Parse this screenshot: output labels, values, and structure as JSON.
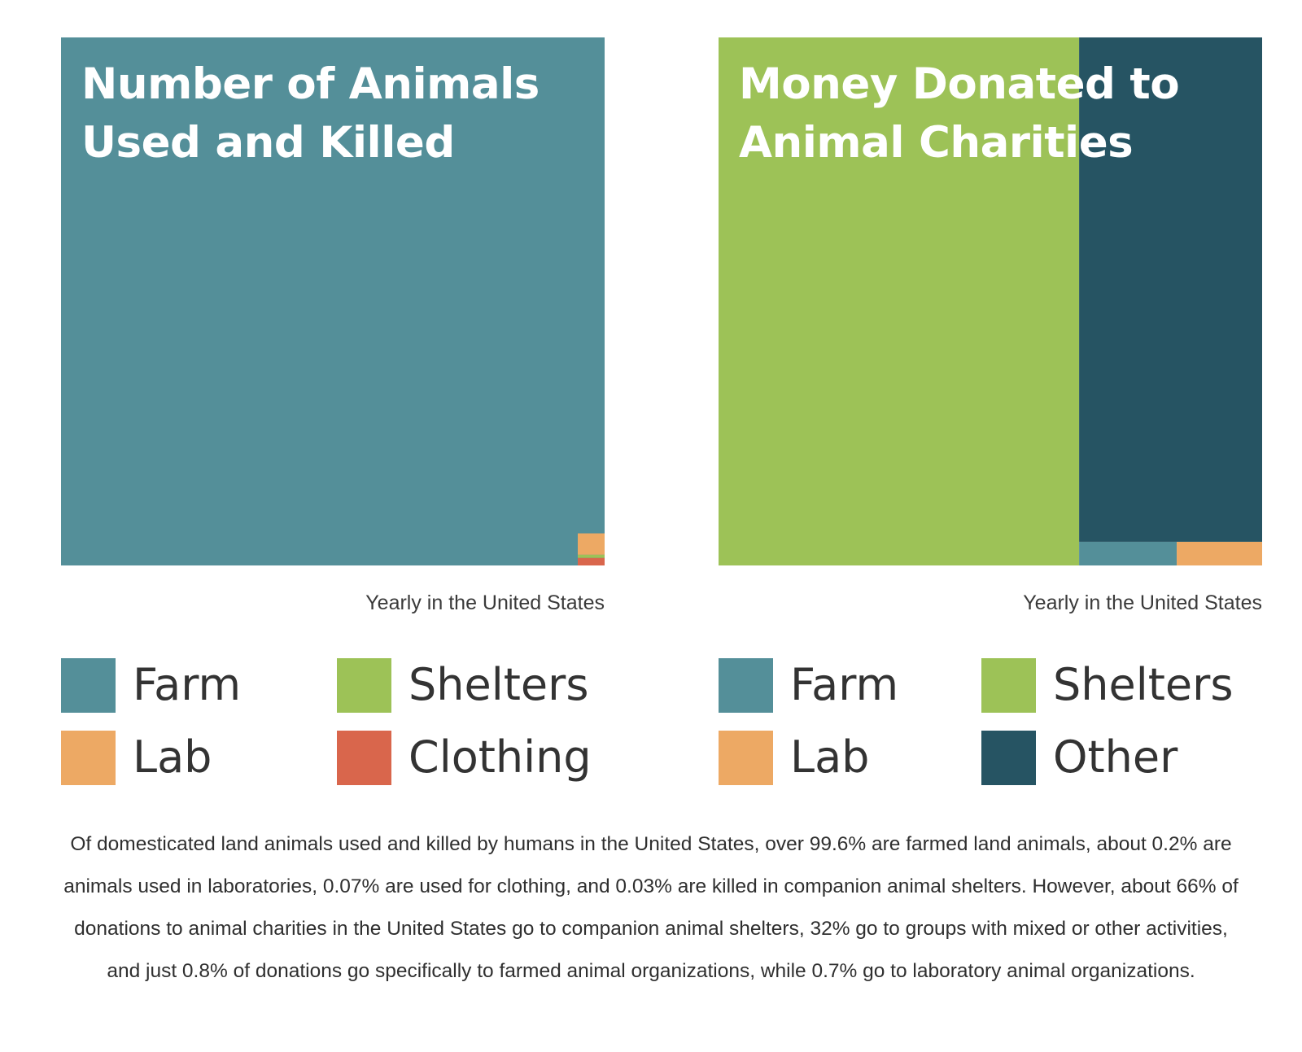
{
  "chart_data": [
    {
      "type": "treemap",
      "title": "Number of Animals\nUsed and Killed",
      "caption": "Yearly in the United States",
      "cells": [
        {
          "name": "Farm",
          "value": 99.6,
          "color": "#548f99"
        },
        {
          "name": "Lab",
          "value": 0.2,
          "color": "#eda964"
        },
        {
          "name": "Clothing",
          "value": 0.07,
          "color": "#d9664c"
        },
        {
          "name": "Shelters",
          "value": 0.03,
          "color": "#9dc257"
        }
      ],
      "legend": [
        {
          "label": "Farm",
          "color": "#548f99"
        },
        {
          "label": "Shelters",
          "color": "#9dc257"
        },
        {
          "label": "Lab",
          "color": "#eda964"
        },
        {
          "label": "Clothing",
          "color": "#d9664c"
        }
      ]
    },
    {
      "type": "treemap",
      "title": "Money Donated to\nAnimal Charities",
      "caption": "Yearly in the United States",
      "cells": [
        {
          "name": "Shelters",
          "value": 66,
          "color": "#9dc257"
        },
        {
          "name": "Other",
          "value": 32,
          "color": "#265463"
        },
        {
          "name": "Farm",
          "value": 0.8,
          "color": "#548f99"
        },
        {
          "name": "Lab",
          "value": 0.7,
          "color": "#eda964"
        }
      ],
      "legend": [
        {
          "label": "Farm",
          "color": "#548f99"
        },
        {
          "label": "Shelters",
          "color": "#9dc257"
        },
        {
          "label": "Lab",
          "color": "#eda964"
        },
        {
          "label": "Other",
          "color": "#265463"
        }
      ]
    }
  ],
  "description": "Of domesticated land animals used and killed by humans in the United States, over 99.6% are farmed land animals, about 0.2% are animals used in laboratories, 0.07% are used for clothing, and 0.03% are killed in companion animal shelters. However, about 66% of donations to animal charities in the United States go to companion animal shelters, 32% go to groups with mixed or other activities, and just 0.8% of donations go specifically to farmed animal organizations, while 0.7% go to laboratory animal organizations."
}
